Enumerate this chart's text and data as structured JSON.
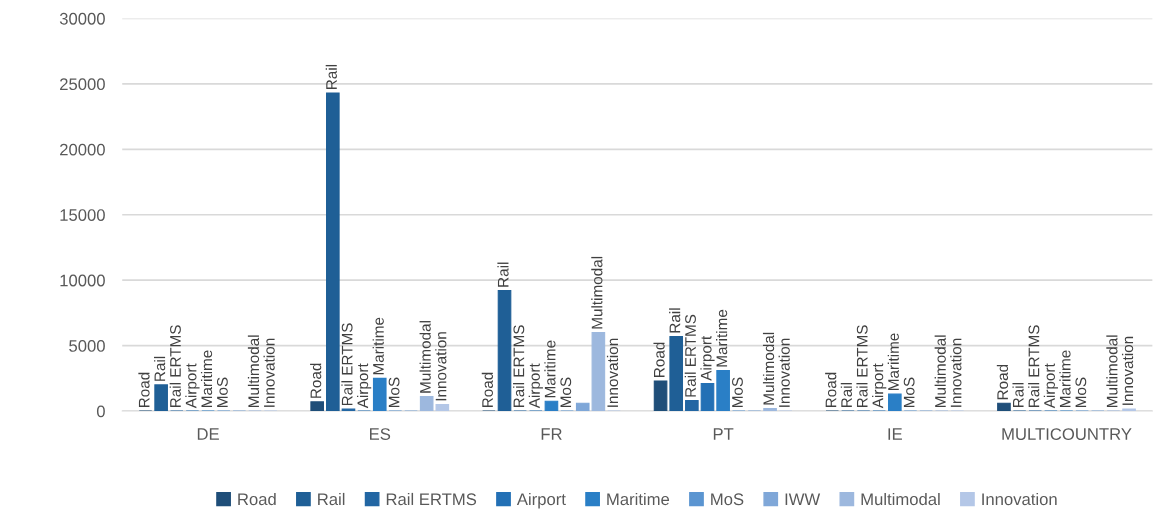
{
  "chart_data": {
    "type": "bar",
    "categories": [
      "DE",
      "ES",
      "FR",
      "PT",
      "IE",
      "MULTICOUNTRY"
    ],
    "ylim": [
      0,
      30000
    ],
    "yticks": [
      0,
      5000,
      10000,
      15000,
      20000,
      25000,
      30000
    ],
    "grid": "y",
    "legend": "bottom",
    "series": [
      {
        "name": "Road",
        "color": "#1f4e79",
        "values": [
          0,
          700,
          0,
          2300,
          0,
          600
        ],
        "value_labels": [
          "Road",
          "Road",
          "Road",
          "Road",
          "Road",
          "Road"
        ]
      },
      {
        "name": "Rail",
        "color": "#1f5f96",
        "values": [
          2000,
          24300,
          9200,
          5700,
          0,
          0
        ],
        "value_labels": [
          "Rail",
          "Rail",
          "Rail",
          "Rail",
          "Rail",
          "Rail"
        ]
      },
      {
        "name": "Rail ERTMS",
        "color": "#2266a3",
        "values": [
          0,
          150,
          0,
          800,
          0,
          0
        ],
        "value_labels": [
          "Rail ERTMS",
          "Rail ERTMS",
          "Rail ERTMS",
          "Rail ERTMS",
          "Rail ERTMS",
          "Rail ERTMS"
        ]
      },
      {
        "name": "Airport",
        "color": "#2370b5",
        "values": [
          0,
          0,
          0,
          2100,
          0,
          0
        ],
        "value_labels": [
          "Airport",
          "Airport",
          "Airport",
          "Airport",
          "Airport",
          "Airport"
        ]
      },
      {
        "name": "Maritime",
        "color": "#2a7fc6",
        "values": [
          0,
          2500,
          750,
          3100,
          1300,
          0
        ],
        "value_labels": [
          "Maritime",
          "Maritime",
          "Maritime",
          "Maritime",
          "Maritime",
          "Maritime"
        ]
      },
      {
        "name": "MoS",
        "color": "#5b95d1",
        "values": [
          0,
          0,
          0,
          0,
          0,
          0
        ],
        "value_labels": [
          "MoS",
          "MoS",
          "MoS",
          "MoS",
          "MoS",
          "MoS"
        ]
      },
      {
        "name": "IWW",
        "color": "#7fa7d8",
        "values": [
          0,
          0,
          600,
          0,
          0,
          0
        ]
      },
      {
        "name": "Multimodal",
        "color": "#9db8de",
        "values": [
          0,
          1100,
          6000,
          200,
          0,
          0
        ],
        "value_labels": [
          "Multimodal",
          "Multimodal",
          "Multimodal",
          "Multimodal",
          "Multimodal",
          "Multimodal"
        ]
      },
      {
        "name": "Innovation",
        "color": "#b4c7e7",
        "values": [
          0,
          500,
          0,
          0,
          0,
          150
        ],
        "value_labels": [
          "Innovation",
          "Innovation",
          "Innovation",
          "Innovation",
          "Innovation",
          "Innovation"
        ]
      }
    ]
  }
}
